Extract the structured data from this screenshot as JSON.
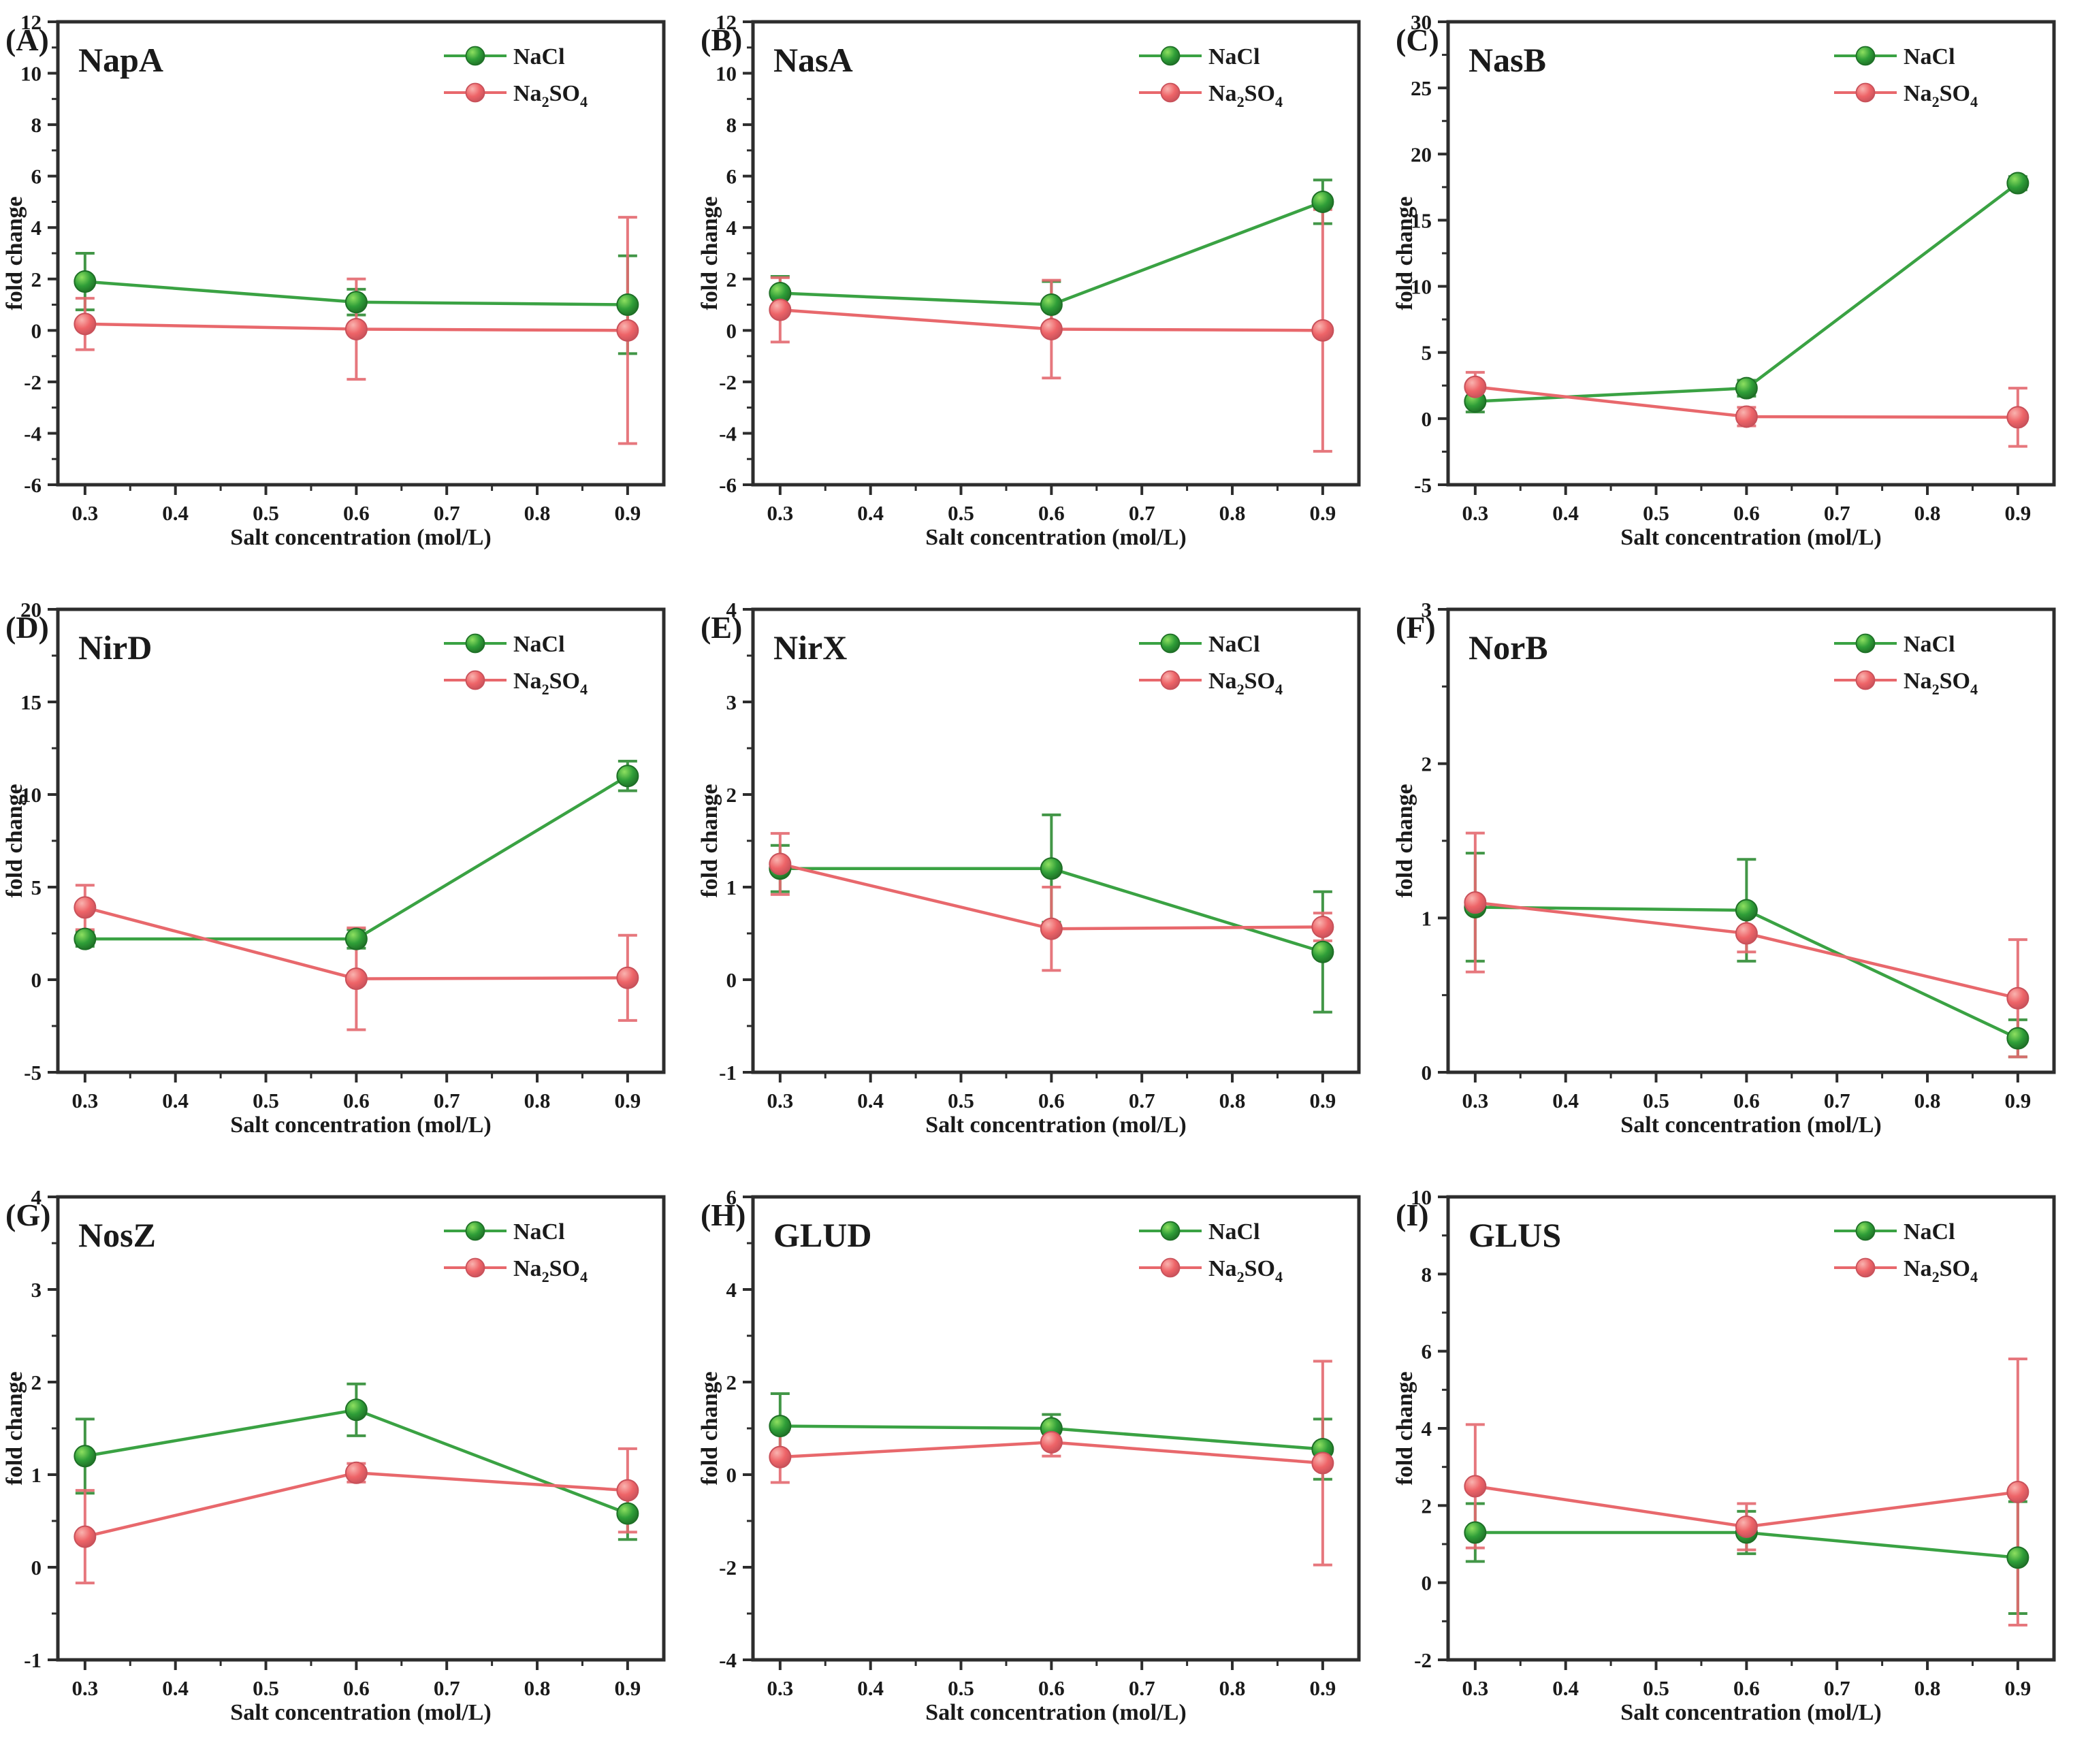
{
  "figure": {
    "xlabel": "Salt concentration (mol/L)",
    "ylabel": "fold change",
    "legend": [
      "NaCl",
      "Na2SO4"
    ],
    "axis_color": "#2d2d2d",
    "text_color": "#1a1a1a",
    "colors": {
      "NaCl": {
        "line": "#3aa243",
        "marker_light": "#8ee060",
        "marker_mid": "#2f9e38",
        "edge": "#1e6f26",
        "err": "#2e8b34"
      },
      "Na2SO4": {
        "line": "#e8686c",
        "marker_light": "#f9b3af",
        "marker_mid": "#ee6468",
        "edge": "#c8515a",
        "err": "#e4696f"
      }
    }
  },
  "chart_data": [
    {
      "type": "line",
      "panel_label": "(A)",
      "title": "NapA",
      "x": [
        0.3,
        0.6,
        0.9
      ],
      "xticks": [
        0.3,
        0.4,
        0.5,
        0.6,
        0.7,
        0.8,
        0.9
      ],
      "xlim": [
        0.27,
        0.94
      ],
      "ylim": [
        -6,
        12
      ],
      "yticks": [
        -6,
        -4,
        -2,
        0,
        2,
        4,
        6,
        8,
        10,
        12
      ],
      "xlabel": "Salt concentration (mol/L)",
      "ylabel": "fold change",
      "grid": false,
      "legend_position": "top-right",
      "series": [
        {
          "name": "NaCl",
          "values": [
            1.9,
            1.1,
            1.0
          ],
          "errors": [
            1.1,
            0.5,
            1.9
          ]
        },
        {
          "name": "Na2SO4",
          "values": [
            0.25,
            0.05,
            0.0
          ],
          "errors": [
            1.0,
            1.95,
            4.4
          ]
        }
      ]
    },
    {
      "type": "line",
      "panel_label": "(B)",
      "title": "NasA",
      "x": [
        0.3,
        0.6,
        0.9
      ],
      "xticks": [
        0.3,
        0.4,
        0.5,
        0.6,
        0.7,
        0.8,
        0.9
      ],
      "xlim": [
        0.27,
        0.94
      ],
      "ylim": [
        -6,
        12
      ],
      "yticks": [
        -6,
        -4,
        -2,
        0,
        2,
        4,
        6,
        8,
        10,
        12
      ],
      "xlabel": "Salt concentration (mol/L)",
      "ylabel": "fold change",
      "grid": false,
      "legend_position": "top-right",
      "series": [
        {
          "name": "NaCl",
          "values": [
            1.45,
            1.0,
            5.0
          ],
          "errors": [
            0.65,
            0.9,
            0.85
          ]
        },
        {
          "name": "Na2SO4",
          "values": [
            0.8,
            0.05,
            0.0
          ],
          "errors": [
            1.25,
            1.9,
            4.7
          ]
        }
      ]
    },
    {
      "type": "line",
      "panel_label": "(C)",
      "title": "NasB",
      "x": [
        0.3,
        0.6,
        0.9
      ],
      "xticks": [
        0.3,
        0.4,
        0.5,
        0.6,
        0.7,
        0.8,
        0.9
      ],
      "xlim": [
        0.27,
        0.94
      ],
      "ylim": [
        -5,
        30
      ],
      "yticks": [
        -5,
        0,
        5,
        10,
        15,
        20,
        25,
        30
      ],
      "xlabel": "Salt concentration (mol/L)",
      "ylabel": "fold change",
      "grid": false,
      "legend_position": "top-right",
      "series": [
        {
          "name": "NaCl",
          "values": [
            1.3,
            2.3,
            17.8
          ],
          "errors": [
            0.8,
            0.6,
            0.5
          ]
        },
        {
          "name": "Na2SO4",
          "values": [
            2.4,
            0.15,
            0.1
          ],
          "errors": [
            1.1,
            0.7,
            2.2
          ]
        }
      ]
    },
    {
      "type": "line",
      "panel_label": "(D)",
      "title": "NirD",
      "x": [
        0.3,
        0.6,
        0.9
      ],
      "xticks": [
        0.3,
        0.4,
        0.5,
        0.6,
        0.7,
        0.8,
        0.9
      ],
      "xlim": [
        0.27,
        0.94
      ],
      "ylim": [
        -5,
        20
      ],
      "yticks": [
        -5,
        0,
        5,
        10,
        15,
        20
      ],
      "xlabel": "Salt concentration (mol/L)",
      "ylabel": "fold change",
      "grid": false,
      "legend_position": "top-right",
      "series": [
        {
          "name": "NaCl",
          "values": [
            2.2,
            2.2,
            11.0
          ],
          "errors": [
            0.4,
            0.5,
            0.8
          ]
        },
        {
          "name": "Na2SO4",
          "values": [
            3.9,
            0.05,
            0.1
          ],
          "errors": [
            1.2,
            2.75,
            2.3
          ]
        }
      ]
    },
    {
      "type": "line",
      "panel_label": "(E)",
      "title": "NirX",
      "x": [
        0.3,
        0.6,
        0.9
      ],
      "xticks": [
        0.3,
        0.4,
        0.5,
        0.6,
        0.7,
        0.8,
        0.9
      ],
      "xlim": [
        0.27,
        0.94
      ],
      "ylim": [
        -1,
        4
      ],
      "yticks": [
        -1,
        0,
        1,
        2,
        3,
        4
      ],
      "xlabel": "Salt concentration (mol/L)",
      "ylabel": "fold change",
      "grid": false,
      "legend_position": "top-right",
      "series": [
        {
          "name": "NaCl",
          "values": [
            1.2,
            1.2,
            0.3
          ],
          "errors": [
            0.25,
            0.58,
            0.65
          ]
        },
        {
          "name": "Na2SO4",
          "values": [
            1.25,
            0.55,
            0.57
          ],
          "errors": [
            0.33,
            0.45,
            0.15
          ]
        }
      ]
    },
    {
      "type": "line",
      "panel_label": "(F)",
      "title": "NorB",
      "x": [
        0.3,
        0.6,
        0.9
      ],
      "xticks": [
        0.3,
        0.4,
        0.5,
        0.6,
        0.7,
        0.8,
        0.9
      ],
      "xlim": [
        0.27,
        0.94
      ],
      "ylim": [
        0,
        3
      ],
      "yticks": [
        0,
        1,
        2,
        3
      ],
      "xlabel": "Salt concentration (mol/L)",
      "ylabel": "fold change",
      "grid": false,
      "legend_position": "top-right",
      "series": [
        {
          "name": "NaCl",
          "values": [
            1.07,
            1.05,
            0.22
          ],
          "errors": [
            0.35,
            0.33,
            0.12
          ]
        },
        {
          "name": "Na2SO4",
          "values": [
            1.1,
            0.9,
            0.48
          ],
          "errors": [
            0.45,
            0.12,
            0.38
          ]
        }
      ]
    },
    {
      "type": "line",
      "panel_label": "(G)",
      "title": "NosZ",
      "x": [
        0.3,
        0.6,
        0.9
      ],
      "xticks": [
        0.3,
        0.4,
        0.5,
        0.6,
        0.7,
        0.8,
        0.9
      ],
      "xlim": [
        0.27,
        0.94
      ],
      "ylim": [
        -1,
        4
      ],
      "yticks": [
        -1,
        0,
        1,
        2,
        3,
        4
      ],
      "xlabel": "Salt concentration (mol/L)",
      "ylabel": "fold change",
      "grid": false,
      "legend_position": "top-right",
      "series": [
        {
          "name": "NaCl",
          "values": [
            1.2,
            1.7,
            0.58
          ],
          "errors": [
            0.4,
            0.28,
            0.28
          ]
        },
        {
          "name": "Na2SO4",
          "values": [
            0.33,
            1.02,
            0.83
          ],
          "errors": [
            0.5,
            0.1,
            0.45
          ]
        }
      ]
    },
    {
      "type": "line",
      "panel_label": "(H)",
      "title": "GLUD",
      "x": [
        0.3,
        0.6,
        0.9
      ],
      "xticks": [
        0.3,
        0.4,
        0.5,
        0.6,
        0.7,
        0.8,
        0.9
      ],
      "xlim": [
        0.27,
        0.94
      ],
      "ylim": [
        -4,
        6
      ],
      "yticks": [
        -4,
        -2,
        0,
        2,
        4,
        6
      ],
      "xlabel": "Salt concentration (mol/L)",
      "ylabel": "fold change",
      "grid": false,
      "legend_position": "top-right",
      "series": [
        {
          "name": "NaCl",
          "values": [
            1.05,
            1.0,
            0.55
          ],
          "errors": [
            0.7,
            0.3,
            0.65
          ]
        },
        {
          "name": "Na2SO4",
          "values": [
            0.38,
            0.7,
            0.25
          ],
          "errors": [
            0.55,
            0.3,
            2.2
          ]
        }
      ]
    },
    {
      "type": "line",
      "panel_label": "(I)",
      "title": "GLUS",
      "x": [
        0.3,
        0.6,
        0.9
      ],
      "xticks": [
        0.3,
        0.4,
        0.5,
        0.6,
        0.7,
        0.8,
        0.9
      ],
      "xlim": [
        0.27,
        0.94
      ],
      "ylim": [
        -2,
        10
      ],
      "yticks": [
        -2,
        0,
        2,
        4,
        6,
        8,
        10
      ],
      "xlabel": "Salt concentration (mol/L)",
      "ylabel": "fold change",
      "grid": false,
      "legend_position": "top-right",
      "series": [
        {
          "name": "NaCl",
          "values": [
            1.3,
            1.3,
            0.65
          ],
          "errors": [
            0.75,
            0.55,
            1.45
          ]
        },
        {
          "name": "Na2SO4",
          "values": [
            2.5,
            1.45,
            2.35
          ],
          "errors": [
            1.6,
            0.6,
            3.45
          ]
        }
      ]
    }
  ]
}
